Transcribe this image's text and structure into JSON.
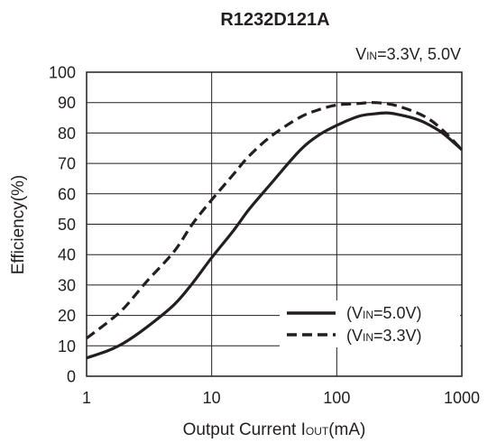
{
  "chart_data": {
    "type": "line",
    "title": "R1232D121A",
    "condition": {
      "main": "V",
      "sub": "IN",
      "rest": "=3.3V, 5.0V"
    },
    "xlabel": {
      "main": "Output Current I",
      "sub": "OUT",
      "rest": "(mA)"
    },
    "ylabel": "Efficiency(%)",
    "x_scale": "log",
    "xlim": [
      1,
      1000
    ],
    "ylim": [
      0,
      100
    ],
    "x_ticks": [
      "1",
      "10",
      "100",
      "1000"
    ],
    "x_tick_values": [
      1,
      10,
      100,
      1000
    ],
    "y_ticks": [
      "0",
      "10",
      "20",
      "30",
      "40",
      "50",
      "60",
      "70",
      "80",
      "90",
      "100"
    ],
    "grid": true,
    "legend_position": "bottom-right",
    "series": [
      {
        "name": {
          "prefix": "(V",
          "sub": "IN",
          "suffix": "=5.0V)"
        },
        "style": "solid",
        "color": "#231f20",
        "x": [
          1,
          1.5,
          2,
          3,
          5,
          7,
          10,
          15,
          20,
          30,
          50,
          70,
          100,
          150,
          200,
          250,
          300,
          400,
          500,
          700,
          1000
        ],
        "y": [
          6,
          8.5,
          11,
          16,
          23.5,
          30.5,
          39,
          48,
          55,
          63.5,
          74,
          79,
          82.5,
          85.5,
          86.3,
          86.6,
          86.2,
          85,
          83.5,
          80,
          74.5
        ]
      },
      {
        "name": {
          "prefix": "(V",
          "sub": "IN",
          "suffix": "=3.3V)"
        },
        "style": "dashed",
        "color": "#231f20",
        "x": [
          1,
          1.5,
          2,
          3,
          5,
          7,
          10,
          15,
          20,
          30,
          50,
          70,
          100,
          150,
          200,
          300,
          500,
          700,
          1000
        ],
        "y": [
          12.5,
          18,
          22.5,
          31,
          41,
          50,
          58,
          66.5,
          72.5,
          79,
          85,
          87.5,
          89.2,
          89.7,
          90,
          89,
          85.5,
          81,
          74.5
        ]
      }
    ]
  }
}
